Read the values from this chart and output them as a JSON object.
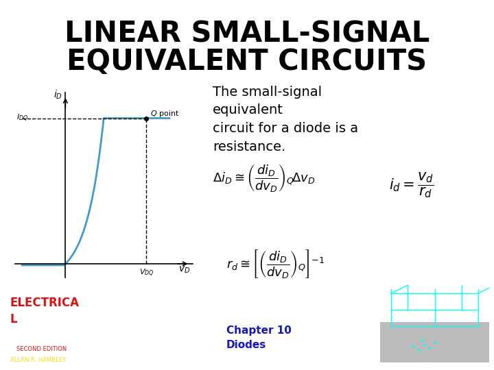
{
  "title_line1": "LINEAR SMALL-SIGNAL",
  "title_line2": "EQUIVALENT CIRCUITS",
  "title_fontsize": 30,
  "title_color": "#000000",
  "bg_color": "#ffffff",
  "description_text": "The small-signal\nequivalent\ncircuit for a diode is a\nresistance.",
  "desc_fontsize": 14,
  "eq1": "$\\Delta i_D \\cong \\left(\\dfrac{di_D}{dv_D}\\right)_Q \\!\\Delta v_D$",
  "eq2": "$i_d = \\dfrac{v_d}{r_d}$",
  "eq3": "$r_d \\cong \\left[\\left(\\dfrac{di_D}{dv_D}\\right)_Q\\right]^{-1}$",
  "eq_fontsize": 13,
  "chapter_text": "Chapter 10\nDiodes",
  "chapter_color": "#1414cc",
  "chapter_fontsize": 11,
  "logo_color": "#dd1111",
  "logo_eng_color": "#ffffff",
  "logo_sub_color": "#ffdd00",
  "curve_color": "#4499cc",
  "axis_color": "#000000"
}
